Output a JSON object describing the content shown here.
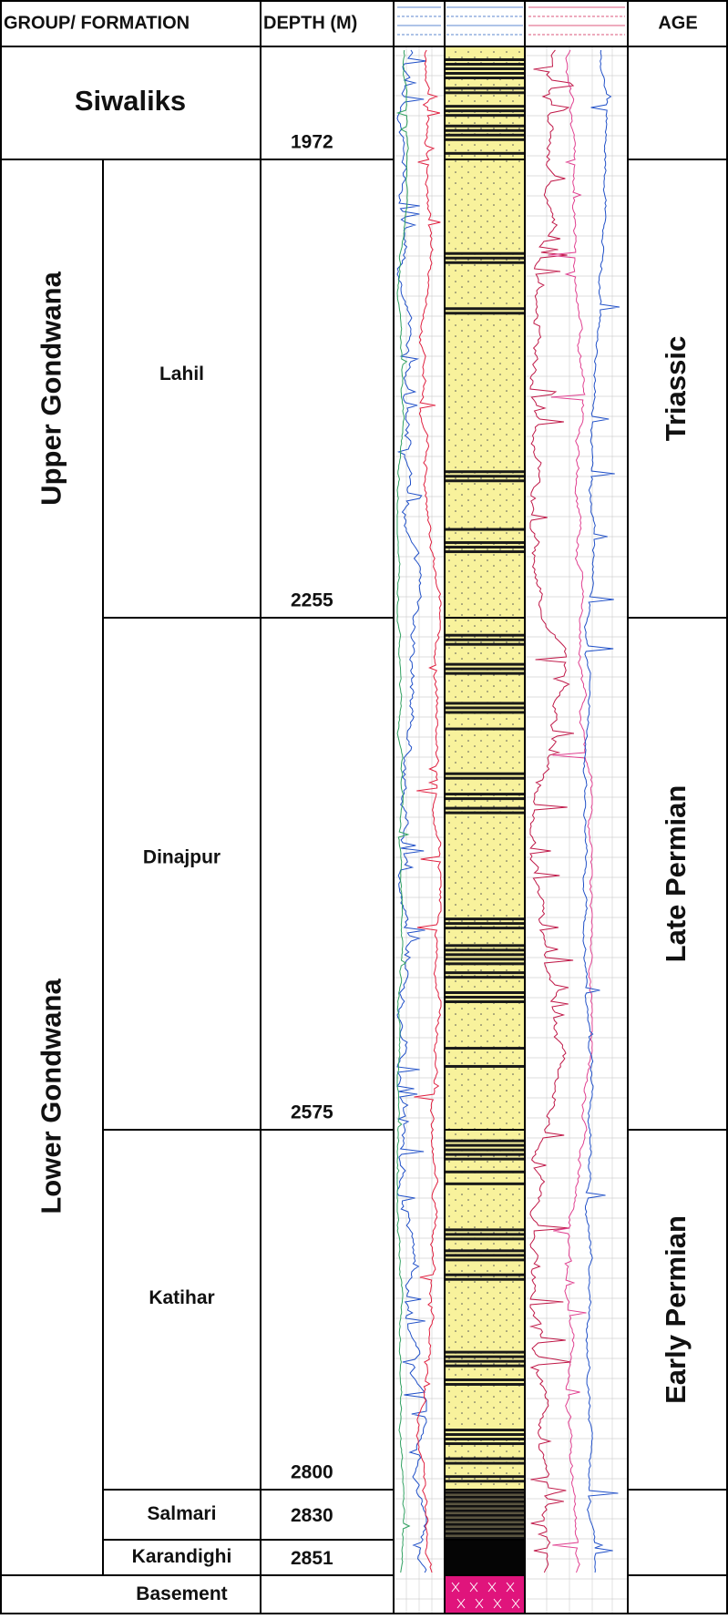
{
  "header": {
    "group_formation": "GROUP/ FORMATION",
    "depth": "DEPTH (M)",
    "age": "AGE"
  },
  "units": [
    {
      "name": "Siwaliks",
      "depth": 1972
    },
    {
      "name": "Lahil",
      "depth": 2255
    },
    {
      "name": "Dinajpur",
      "depth": 2575
    },
    {
      "name": "Katihar",
      "depth": 2800
    },
    {
      "name": "Salmari",
      "depth": 2830
    },
    {
      "name": "Karandighi",
      "depth": 2851
    },
    {
      "name": "Basement"
    }
  ],
  "groups": [
    "Upper Gondwana",
    "Lower Gondwana"
  ],
  "ages": [
    "Triassic",
    "Late Permian",
    "Early Permian"
  ]
}
